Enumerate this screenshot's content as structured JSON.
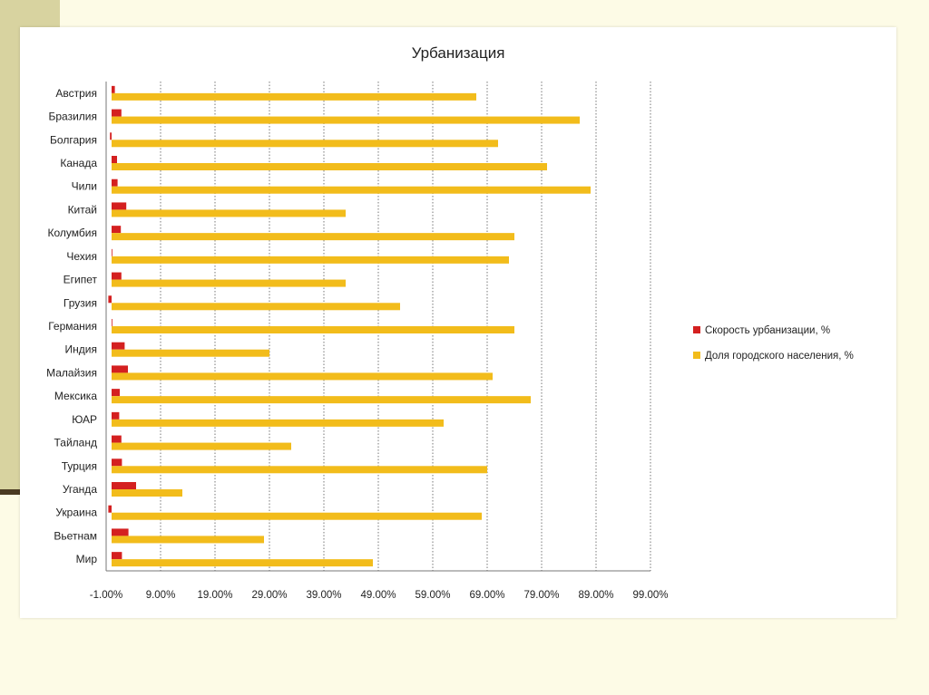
{
  "chart_data": {
    "type": "bar",
    "orientation": "horizontal",
    "title": "Урбанизация",
    "xlabel": "",
    "ylabel": "",
    "categories": [
      "Австрия",
      "Бразилия",
      "Болгария",
      "Канада",
      "Чили",
      "Китай",
      "Колумбия",
      "Чехия",
      "Египет",
      "Грузия",
      "Германия",
      "Индия",
      "Малайзия",
      "Мексика",
      "ЮАР",
      "Тайланд",
      "Турция",
      "Уганда",
      "Украина",
      "Вьетнам",
      "Мир"
    ],
    "series": [
      {
        "name": "Скорость урбанизации, %",
        "color": "#d42020",
        "values": [
          0.6,
          1.8,
          -0.3,
          1.0,
          1.1,
          2.7,
          1.7,
          0.1,
          1.8,
          -0.6,
          0.0,
          2.4,
          3.0,
          1.5,
          1.4,
          1.8,
          1.9,
          4.5,
          -0.6,
          3.1,
          1.9
        ]
      },
      {
        "name": "Доля городского населения, %",
        "color": "#f2bc1b",
        "values": [
          67,
          86,
          71,
          80,
          88,
          43,
          74,
          73,
          43,
          53,
          74,
          29,
          70,
          77,
          61,
          33,
          69,
          13,
          68,
          28,
          48
        ]
      }
    ],
    "xlim": [
      -1,
      99
    ],
    "xticks": [
      "-1.00%",
      "9.00%",
      "19.00%",
      "29.00%",
      "39.00%",
      "49.00%",
      "59.00%",
      "69.00%",
      "79.00%",
      "89.00%",
      "99.00%"
    ],
    "xtick_values": [
      -1,
      9,
      19,
      29,
      39,
      49,
      59,
      69,
      79,
      89,
      99
    ],
    "grid": "vertical dotted",
    "legend": "right"
  }
}
